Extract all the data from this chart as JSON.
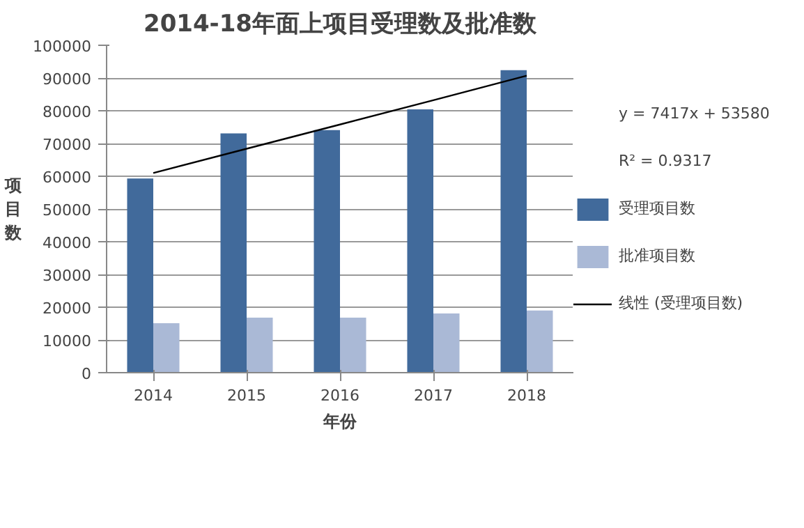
{
  "chart_data": {
    "type": "bar",
    "title": "2014-18年面上项目受理数及批准数",
    "xlabel": "年份",
    "ylabel": "项目数",
    "categories": [
      "2014",
      "2015",
      "2016",
      "2017",
      "2018"
    ],
    "series": [
      {
        "name": "受理项目数",
        "color": "#416a9b",
        "values": [
          59300,
          73100,
          74100,
          80400,
          92400
        ]
      },
      {
        "name": "批准项目数",
        "color": "#aab9d6",
        "values": [
          15100,
          16800,
          16800,
          18100,
          19000
        ]
      },
      {
        "name": "线性 (受理项目数)",
        "type": "line",
        "color": "#000000",
        "values": [
          61000,
          68400,
          75800,
          83200,
          90700
        ]
      }
    ],
    "annotations": [
      "y = 7417x + 53580",
      "R² = 0.9317"
    ],
    "ylim": [
      0,
      100000
    ],
    "yticks": [
      0,
      10000,
      20000,
      30000,
      40000,
      50000,
      60000,
      70000,
      80000,
      90000,
      100000
    ],
    "grid": "y",
    "legend": "right"
  }
}
